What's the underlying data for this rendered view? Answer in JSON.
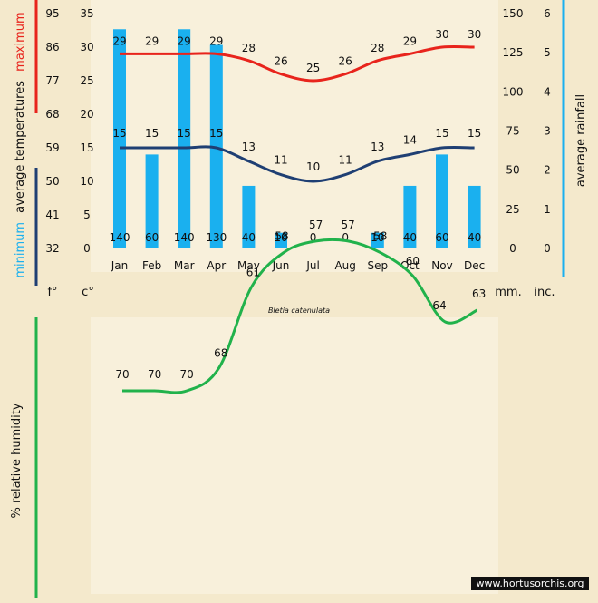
{
  "species": "Bletia catenulata",
  "watermark": "www.hortusorchis.org",
  "colors": {
    "max_line": "#e8241c",
    "min_line": "#1f3f73",
    "rain_bar": "#1ab0ef",
    "humidity_line": "#21b24b",
    "axis_text": "#111111"
  },
  "labels": {
    "maximum": "maximum",
    "average_temperatures": "average temperatures",
    "minimum": "minimum",
    "average_rainfall": "average rainfall",
    "relative_humidity": "% relative humidity",
    "unit_f": "f°",
    "unit_c": "c°",
    "unit_mm": "mm.",
    "unit_inc": "inc."
  },
  "chart_data": [
    {
      "type": "bar+line",
      "title": "Bletia catenulata",
      "categories": [
        "Jan",
        "Feb",
        "Mar",
        "Apr",
        "May",
        "Jun",
        "Jul",
        "Aug",
        "Sep",
        "Oct",
        "Nov",
        "Dec"
      ],
      "axes": {
        "fahrenheit_ticks": [
          32,
          41,
          50,
          59,
          68,
          77,
          86,
          95
        ],
        "celsius_ticks": [
          0,
          5,
          10,
          15,
          20,
          25,
          30,
          35
        ],
        "celsius_range": [
          0,
          35
        ],
        "mm_ticks": [
          0,
          25,
          50,
          75,
          100,
          125,
          150
        ],
        "mm_range": [
          0,
          150
        ],
        "inch_ticks": [
          0,
          1,
          2,
          3,
          4,
          5,
          6
        ]
      },
      "series": [
        {
          "name": "maximum",
          "kind": "line",
          "axis": "celsius",
          "values": [
            29,
            29,
            29,
            29,
            28,
            26,
            25,
            26,
            28,
            29,
            30,
            30
          ]
        },
        {
          "name": "minimum",
          "kind": "line",
          "axis": "celsius",
          "values": [
            15,
            15,
            15,
            15,
            13,
            11,
            10,
            11,
            13,
            14,
            15,
            15
          ]
        },
        {
          "name": "rainfall",
          "kind": "bar",
          "axis": "mm",
          "values": [
            140,
            60,
            140,
            130,
            40,
            10,
            0,
            0,
            10,
            40,
            60,
            40
          ]
        }
      ]
    },
    {
      "type": "line",
      "title": "",
      "ylabel": "% relative humidity",
      "categories": [
        "Jan",
        "Feb",
        "Mar",
        "Apr",
        "May",
        "Jun",
        "Jul",
        "Aug",
        "Sep",
        "Oct",
        "Nov",
        "Dec"
      ],
      "series": [
        {
          "name": "relative humidity",
          "values": [
            70,
            70,
            70,
            68,
            61,
            58,
            57,
            57,
            58,
            60,
            64,
            63
          ]
        }
      ]
    }
  ]
}
